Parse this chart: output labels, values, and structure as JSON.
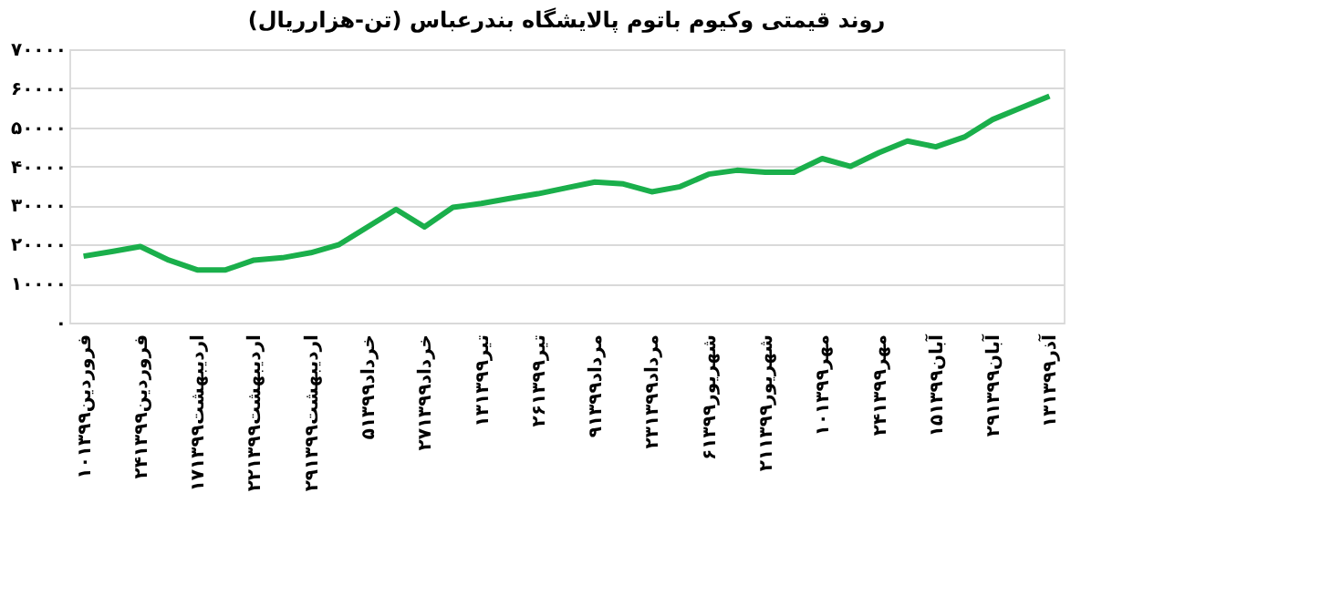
{
  "chart_data": {
    "type": "line",
    "title": "روند قیمتی وکیوم باتوم پالایشگاه بندرعباس (تن-هزارریال)",
    "categories": [
      "۱۰فروردین۱۳۹۹",
      null,
      "۲۴فروردین۱۳۹۹",
      null,
      "۱۷اردیبهشت۱۳۹۹",
      null,
      "۲۲اردیبهشت۱۳۹۹",
      null,
      "۲۹اردیبهشت۱۳۹۹",
      null,
      "۵خرداد۱۳۹۹",
      null,
      "۲۷خرداد۱۳۹۹",
      null,
      "۱۳تیر۱۳۹۹",
      null,
      "۲۶تیر۱۳۹۹",
      null,
      "۹مرداد۱۳۹۹",
      null,
      "۲۳مرداد۱۳۹۹",
      null,
      "۶شهریور۱۳۹۹",
      null,
      "۲۱شهریور۱۳۹۹",
      null,
      "۱۰مهر۱۳۹۹",
      null,
      "۲۴مهر۱۳۹۹",
      null,
      "۱۵آبان۱۳۹۹",
      null,
      "۲۹آبان۱۳۹۹",
      null,
      "۱۳آذر۱۳۹۹"
    ],
    "series": [
      {
        "color": "#1aaf4b",
        "values": [
          17000,
          18200,
          19500,
          16000,
          13500,
          13500,
          16000,
          16600,
          17900,
          20000,
          24500,
          29000,
          24500,
          29500,
          30500,
          31800,
          33000,
          34500,
          36000,
          35500,
          33500,
          34800,
          38000,
          39000,
          38500,
          38500,
          42000,
          40000,
          43500,
          46500,
          45000,
          47500,
          52000,
          55000,
          58000
        ]
      }
    ],
    "ylim": [
      0,
      70000
    ],
    "yticks": [
      {
        "value": 0,
        "label": "۰"
      },
      {
        "value": 10000,
        "label": "۱۰۰۰۰"
      },
      {
        "value": 20000,
        "label": "۲۰۰۰۰"
      },
      {
        "value": 30000,
        "label": "۳۰۰۰۰"
      },
      {
        "value": 40000,
        "label": "۴۰۰۰۰"
      },
      {
        "value": 50000,
        "label": "۵۰۰۰۰"
      },
      {
        "value": 60000,
        "label": "۶۰۰۰۰"
      },
      {
        "value": 70000,
        "label": "۷۰۰۰۰"
      }
    ],
    "grid": "y",
    "marker": "none",
    "line_style": "solid"
  }
}
